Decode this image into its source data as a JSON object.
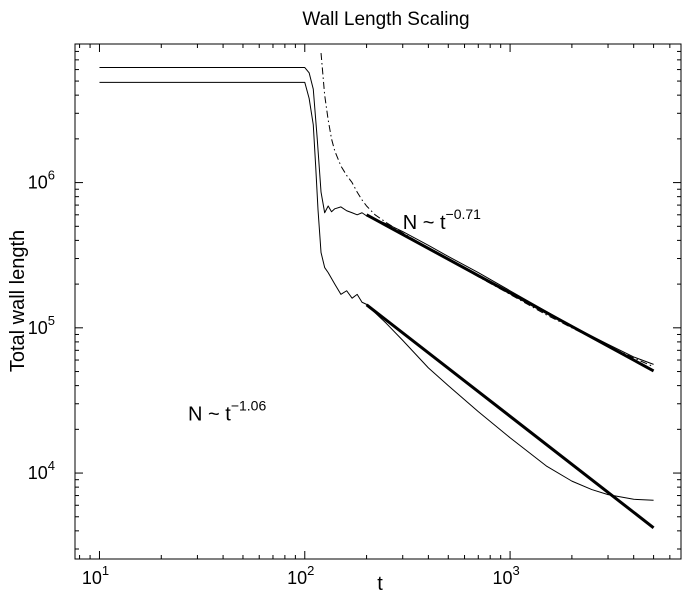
{
  "chart_data": {
    "type": "line",
    "title": "Wall Length Scaling",
    "xlabel": "t",
    "ylabel": "Total wall length",
    "x_scale": "log",
    "y_scale": "log",
    "xlim": [
      7.6,
      6800
    ],
    "ylim": [
      2560,
      9000000
    ],
    "grid": false,
    "x_ticks": [
      {
        "value": 10,
        "base": "10",
        "exp": "1"
      },
      {
        "value": 100,
        "base": "10",
        "exp": "2"
      },
      {
        "value": 1000,
        "base": "10",
        "exp": "3"
      }
    ],
    "y_ticks": [
      {
        "value": 10000,
        "base": "10",
        "exp": "4"
      },
      {
        "value": 100000,
        "base": "10",
        "exp": "5"
      },
      {
        "value": 1000000,
        "base": "10",
        "exp": "6"
      }
    ],
    "annotations": [
      {
        "base": "N ~ t",
        "exp": "−0.71",
        "x": 300,
        "y": 480000
      },
      {
        "base": "N ~ t",
        "exp": "−1.06",
        "x": 27,
        "y": 23000
      }
    ],
    "series": [
      {
        "style": "thin-solid",
        "x": [
          10,
          30,
          100,
          105,
          110,
          115,
          120,
          125,
          130,
          135,
          140,
          150,
          160,
          170,
          180,
          190,
          200,
          220,
          250,
          300,
          400,
          500,
          700,
          1000,
          1500,
          2000,
          3000,
          4000,
          5000
        ],
        "y": [
          6200000,
          6200000,
          6200000,
          5700000,
          4400000,
          2000000,
          860000,
          620000,
          690000,
          630000,
          660000,
          680000,
          640000,
          620000,
          600000,
          620000,
          590000,
          560000,
          520000,
          460000,
          370000,
          310000,
          240000,
          180000,
          130000,
          103000,
          77000,
          63000,
          56000
        ]
      },
      {
        "style": "thin-solid",
        "x": [
          10,
          30,
          100,
          105,
          110,
          113,
          116,
          120,
          125,
          130,
          140,
          150,
          160,
          170,
          180,
          190,
          200,
          220,
          250,
          300,
          400,
          500,
          700,
          1000,
          1500,
          2000,
          2500,
          3000,
          4000,
          5000
        ],
        "y": [
          4900000,
          4900000,
          4900000,
          3800000,
          2500000,
          1300000,
          650000,
          330000,
          260000,
          240000,
          200000,
          170000,
          180000,
          160000,
          170000,
          150000,
          145000,
          127000,
          107000,
          82000,
          53000,
          40000,
          26500,
          17500,
          11200,
          8800,
          7700,
          7100,
          6600,
          6500
        ]
      },
      {
        "style": "dash-dot",
        "x": [
          120,
          125,
          130,
          135,
          140,
          150,
          160,
          170,
          180,
          190,
          200,
          220,
          250,
          300,
          400,
          500,
          700,
          1000,
          1500,
          2000,
          3000,
          4000,
          5000
        ],
        "y": [
          7800000,
          4000000,
          2700000,
          2000000,
          1650000,
          1300000,
          1120000,
          1000000,
          860000,
          760000,
          690000,
          600000,
          530000,
          450000,
          355000,
          295000,
          225000,
          170000,
          123000,
          100000,
          75000,
          62000,
          54000
        ]
      },
      {
        "style": "thick-fit",
        "x": [
          200,
          5000
        ],
        "y": [
          600000,
          50500
        ]
      },
      {
        "style": "thick-fit",
        "x": [
          200,
          5000
        ],
        "y": [
          144000,
          4200
        ]
      }
    ]
  }
}
